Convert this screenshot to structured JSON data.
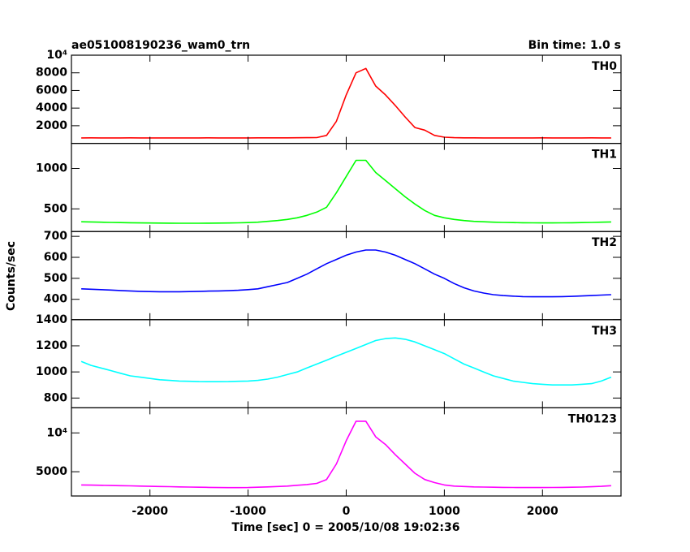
{
  "chart_data": {
    "type": "line",
    "title": "ae051008190236_wam0_trn",
    "subtitle": "Bin time: 1.0 s",
    "xlabel": "Time [sec] 0 = 2005/10/08 19:02:36",
    "ylabel": "Counts/sec",
    "xlim": [
      -2800,
      2800
    ],
    "xticks": [
      -2000,
      -1000,
      0,
      1000,
      2000
    ],
    "x": [
      -2700,
      -2600,
      -2500,
      -2400,
      -2300,
      -2200,
      -2100,
      -2000,
      -1900,
      -1800,
      -1700,
      -1600,
      -1500,
      -1400,
      -1300,
      -1200,
      -1100,
      -1000,
      -900,
      -800,
      -700,
      -600,
      -500,
      -400,
      -300,
      -200,
      -100,
      0,
      100,
      200,
      300,
      400,
      500,
      600,
      700,
      800,
      900,
      1000,
      1100,
      1200,
      1300,
      1400,
      1500,
      1600,
      1700,
      1800,
      1900,
      2000,
      2100,
      2200,
      2300,
      2400,
      2500,
      2600,
      2700
    ],
    "series": [
      {
        "name": "TH0",
        "color": "#ff0000",
        "ylim": [
          0,
          10000
        ],
        "yticks": [
          2000,
          4000,
          6000,
          8000,
          {
            "value": 10000,
            "label": "10⁴"
          }
        ],
        "values": [
          620,
          625,
          615,
          620,
          618,
          622,
          616,
          620,
          615,
          618,
          620,
          614,
          618,
          622,
          616,
          615,
          620,
          618,
          622,
          625,
          628,
          630,
          635,
          640,
          650,
          900,
          2500,
          5500,
          8000,
          8500,
          6500,
          5500,
          4300,
          3000,
          1800,
          1500,
          900,
          700,
          640,
          630,
          625,
          620,
          618,
          620,
          616,
          620,
          618,
          622,
          615,
          620,
          618,
          620,
          622,
          618,
          620
        ]
      },
      {
        "name": "TH1",
        "color": "#00ff00",
        "ylim": [
          220,
          1310
        ],
        "yticks": [
          500,
          1000
        ],
        "values": [
          340,
          338,
          335,
          332,
          330,
          328,
          326,
          325,
          324,
          323,
          322,
          322,
          322,
          323,
          324,
          325,
          327,
          330,
          335,
          345,
          355,
          370,
          390,
          420,
          460,
          520,
          700,
          900,
          1100,
          1100,
          950,
          850,
          750,
          650,
          560,
          480,
          420,
          390,
          370,
          355,
          345,
          340,
          335,
          332,
          330,
          328,
          327,
          326,
          326,
          327,
          328,
          330,
          332,
          335,
          338
        ]
      },
      {
        "name": "TH2",
        "color": "#0000ff",
        "ylim": [
          303,
          723
        ],
        "yticks": [
          400,
          500,
          600,
          700
        ],
        "values": [
          450,
          448,
          446,
          444,
          442,
          440,
          438,
          437,
          436,
          436,
          436,
          437,
          438,
          439,
          440,
          441,
          443,
          446,
          450,
          460,
          470,
          480,
          500,
          520,
          545,
          570,
          590,
          610,
          625,
          635,
          635,
          625,
          610,
          590,
          570,
          545,
          520,
          500,
          475,
          455,
          440,
          430,
          422,
          418,
          415,
          413,
          412,
          412,
          412,
          413,
          414,
          416,
          418,
          420,
          422
        ]
      },
      {
        "name": "TH3",
        "color": "#00ffff",
        "ylim": [
          725,
          1400
        ],
        "yticks": [
          800,
          1000,
          1200,
          1400
        ],
        "values": [
          1080,
          1050,
          1030,
          1010,
          990,
          970,
          960,
          950,
          940,
          935,
          930,
          928,
          926,
          925,
          925,
          926,
          928,
          930,
          935,
          945,
          960,
          980,
          1000,
          1030,
          1060,
          1090,
          1120,
          1150,
          1180,
          1210,
          1240,
          1255,
          1260,
          1250,
          1230,
          1200,
          1170,
          1140,
          1100,
          1060,
          1030,
          1000,
          970,
          950,
          930,
          920,
          910,
          905,
          900,
          900,
          900,
          905,
          910,
          930,
          960
        ]
      },
      {
        "name": "TH0123",
        "color": "#ff00ff",
        "ylim": [
          1875,
          13230
        ],
        "yticks": [
          5000,
          {
            "value": 10000,
            "label": "10⁴"
          }
        ],
        "values": [
          3300,
          3280,
          3250,
          3220,
          3200,
          3180,
          3150,
          3120,
          3100,
          3080,
          3050,
          3030,
          3000,
          2980,
          2960,
          2950,
          2950,
          2960,
          3000,
          3050,
          3100,
          3150,
          3250,
          3350,
          3500,
          4000,
          6000,
          9000,
          11500,
          11500,
          9500,
          8500,
          7200,
          6000,
          4800,
          4000,
          3600,
          3300,
          3150,
          3100,
          3050,
          3020,
          3000,
          2980,
          2970,
          2960,
          2960,
          2960,
          2970,
          2980,
          3000,
          3030,
          3070,
          3120,
          3200
        ]
      }
    ]
  }
}
